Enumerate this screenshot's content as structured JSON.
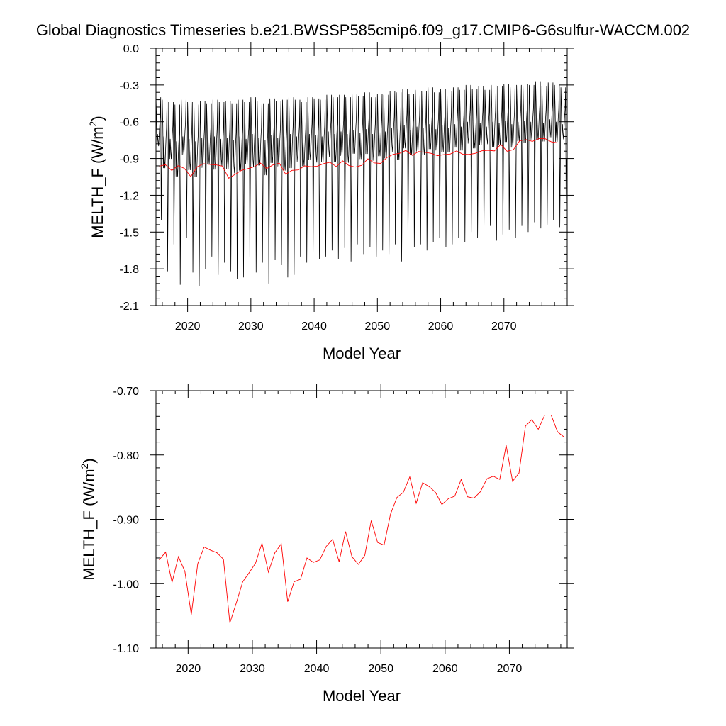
{
  "title": "Global Diagnostics Timeseries b.e21.BWSSP585cmip6.f09_g17.CMIP6-G6sulfur-WACCM.002",
  "colors": {
    "monthly": "#000000",
    "annual": "#ff0000",
    "axis": "#000000",
    "background": "#ffffff"
  },
  "chart_data": [
    {
      "type": "line",
      "xlabel": "Model Year",
      "ylabel": "MELTH_F (W/m2)",
      "ylabel_main": "MELTH_F (W/m",
      "ylabel_sup": "2",
      "ylabel_close": ")",
      "xlim": [
        2015,
        2080
      ],
      "ylim": [
        -2.1,
        0.0
      ],
      "x_ticks": [
        2020,
        2030,
        2040,
        2050,
        2060,
        2070
      ],
      "x_tick_labels": [
        "2020",
        "2030",
        "2040",
        "2050",
        "2060",
        "2070"
      ],
      "y_ticks": [
        0.0,
        -0.3,
        -0.6,
        -0.9,
        -1.2,
        -1.5,
        -1.8,
        -2.1
      ],
      "y_tick_labels": [
        "0.0",
        "-0.3",
        "-0.6",
        "-0.9",
        "-1.2",
        "-1.5",
        "-1.8",
        "-2.1"
      ],
      "grid": false,
      "series": [
        {
          "kind": "monthly",
          "color": "#000000",
          "start_year": 2015,
          "samples_per_year": 12,
          "annual_max": [
            -0.4,
            -0.42,
            -0.44,
            -0.46,
            -0.42,
            -0.44,
            -0.46,
            -0.43,
            -0.45,
            -0.42,
            -0.44,
            -0.43,
            -0.45,
            -0.42,
            -0.44,
            -0.4,
            -0.43,
            -0.45,
            -0.41,
            -0.43,
            -0.42,
            -0.4,
            -0.42,
            -0.44,
            -0.4,
            -0.41,
            -0.42,
            -0.38,
            -0.4,
            -0.38,
            -0.4,
            -0.37,
            -0.39,
            -0.36,
            -0.4,
            -0.37,
            -0.38,
            -0.35,
            -0.36,
            -0.33,
            -0.37,
            -0.34,
            -0.35,
            -0.32,
            -0.36,
            -0.33,
            -0.35,
            -0.32,
            -0.34,
            -0.3,
            -0.33,
            -0.31,
            -0.34,
            -0.3,
            -0.31,
            -0.29,
            -0.32,
            -0.3,
            -0.29,
            -0.3,
            -0.27,
            -0.31,
            -0.28,
            -0.3,
            -0.32
          ],
          "annual_min": [
            -1.4,
            -1.82,
            -1.6,
            -1.93,
            -1.55,
            -1.83,
            -1.94,
            -1.8,
            -1.7,
            -1.85,
            -1.75,
            -1.82,
            -1.88,
            -1.87,
            -1.7,
            -1.83,
            -1.75,
            -1.92,
            -1.73,
            -1.77,
            -1.87,
            -1.85,
            -1.7,
            -1.75,
            -1.68,
            -1.72,
            -1.7,
            -1.65,
            -1.72,
            -1.63,
            -1.74,
            -1.6,
            -1.68,
            -1.62,
            -1.7,
            -1.65,
            -1.68,
            -1.6,
            -1.74,
            -1.55,
            -1.62,
            -1.6,
            -1.65,
            -1.58,
            -1.55,
            -1.62,
            -1.6,
            -1.55,
            -1.58,
            -1.5,
            -1.55,
            -1.52,
            -1.45,
            -1.57,
            -1.52,
            -1.48,
            -1.55,
            -1.45,
            -1.5,
            -1.42,
            -1.47,
            -1.44,
            -1.4,
            -1.46,
            -1.38
          ],
          "secondary_peak_offset": 0.3
        },
        {
          "kind": "annual_mean",
          "color": "#ff0000",
          "x": [
            2015.5,
            2016.5,
            2017.5,
            2018.5,
            2019.5,
            2020.5,
            2021.5,
            2022.5,
            2023.5,
            2024.5,
            2025.5,
            2026.5,
            2027.5,
            2028.5,
            2029.5,
            2030.5,
            2031.5,
            2032.5,
            2033.5,
            2034.5,
            2035.5,
            2036.5,
            2037.5,
            2038.5,
            2039.5,
            2040.5,
            2041.5,
            2042.5,
            2043.5,
            2044.5,
            2045.5,
            2046.5,
            2047.5,
            2048.5,
            2049.5,
            2050.5,
            2051.5,
            2052.5,
            2053.5,
            2054.5,
            2055.5,
            2056.5,
            2057.5,
            2058.5,
            2059.5,
            2060.5,
            2061.5,
            2062.5,
            2063.5,
            2064.5,
            2065.5,
            2066.5,
            2067.5,
            2068.5,
            2069.5,
            2070.5,
            2071.5,
            2072.5,
            2073.5,
            2074.5,
            2075.5,
            2076.5,
            2077.5,
            2078.5
          ],
          "y": [
            -0.963,
            -0.951,
            -0.998,
            -0.958,
            -0.981,
            -1.048,
            -0.969,
            -0.943,
            -0.948,
            -0.952,
            -0.962,
            -1.061,
            -1.03,
            -0.997,
            -0.983,
            -0.968,
            -0.937,
            -0.982,
            -0.952,
            -0.938,
            -1.028,
            -0.997,
            -0.993,
            -0.96,
            -0.967,
            -0.963,
            -0.942,
            -0.931,
            -0.966,
            -0.919,
            -0.958,
            -0.97,
            -0.956,
            -0.902,
            -0.936,
            -0.94,
            -0.892,
            -0.866,
            -0.858,
            -0.834,
            -0.875,
            -0.843,
            -0.849,
            -0.858,
            -0.877,
            -0.868,
            -0.864,
            -0.838,
            -0.865,
            -0.867,
            -0.857,
            -0.837,
            -0.833,
            -0.838,
            -0.785,
            -0.841,
            -0.828,
            -0.755,
            -0.745,
            -0.76,
            -0.738,
            -0.738,
            -0.764,
            -0.772
          ]
        }
      ]
    },
    {
      "type": "line",
      "xlabel": "Model Year",
      "ylabel": "MELTH_F (W/m2)",
      "ylabel_main": "MELTH_F (W/m",
      "ylabel_sup": "2",
      "ylabel_close": ")",
      "xlim": [
        2015,
        2079
      ],
      "ylim": [
        -1.1,
        -0.7
      ],
      "x_ticks": [
        2020,
        2030,
        2040,
        2050,
        2060,
        2070
      ],
      "x_tick_labels": [
        "2020",
        "2030",
        "2040",
        "2050",
        "2060",
        "2070"
      ],
      "y_ticks": [
        -0.7,
        -0.8,
        -0.9,
        -1.0,
        -1.1
      ],
      "y_tick_labels": [
        "-0.70",
        "-0.80",
        "-0.90",
        "-1.00",
        "-1.10"
      ],
      "grid": false,
      "series": [
        {
          "kind": "annual_mean",
          "color": "#ff0000",
          "x": [
            2015.5,
            2016.5,
            2017.5,
            2018.5,
            2019.5,
            2020.5,
            2021.5,
            2022.5,
            2023.5,
            2024.5,
            2025.5,
            2026.5,
            2027.5,
            2028.5,
            2029.5,
            2030.5,
            2031.5,
            2032.5,
            2033.5,
            2034.5,
            2035.5,
            2036.5,
            2037.5,
            2038.5,
            2039.5,
            2040.5,
            2041.5,
            2042.5,
            2043.5,
            2044.5,
            2045.5,
            2046.5,
            2047.5,
            2048.5,
            2049.5,
            2050.5,
            2051.5,
            2052.5,
            2053.5,
            2054.5,
            2055.5,
            2056.5,
            2057.5,
            2058.5,
            2059.5,
            2060.5,
            2061.5,
            2062.5,
            2063.5,
            2064.5,
            2065.5,
            2066.5,
            2067.5,
            2068.5,
            2069.5,
            2070.5,
            2071.5,
            2072.5,
            2073.5,
            2074.5,
            2075.5,
            2076.5,
            2077.5,
            2078.5
          ],
          "y": [
            -0.963,
            -0.951,
            -0.998,
            -0.958,
            -0.981,
            -1.048,
            -0.969,
            -0.943,
            -0.948,
            -0.952,
            -0.962,
            -1.061,
            -1.03,
            -0.997,
            -0.983,
            -0.968,
            -0.937,
            -0.982,
            -0.952,
            -0.938,
            -1.028,
            -0.997,
            -0.993,
            -0.96,
            -0.967,
            -0.963,
            -0.942,
            -0.931,
            -0.966,
            -0.919,
            -0.958,
            -0.97,
            -0.956,
            -0.902,
            -0.936,
            -0.94,
            -0.892,
            -0.866,
            -0.858,
            -0.834,
            -0.875,
            -0.843,
            -0.849,
            -0.858,
            -0.877,
            -0.868,
            -0.864,
            -0.838,
            -0.865,
            -0.867,
            -0.857,
            -0.837,
            -0.833,
            -0.838,
            -0.785,
            -0.841,
            -0.828,
            -0.755,
            -0.745,
            -0.76,
            -0.738,
            -0.738,
            -0.764,
            -0.772
          ]
        }
      ]
    }
  ]
}
